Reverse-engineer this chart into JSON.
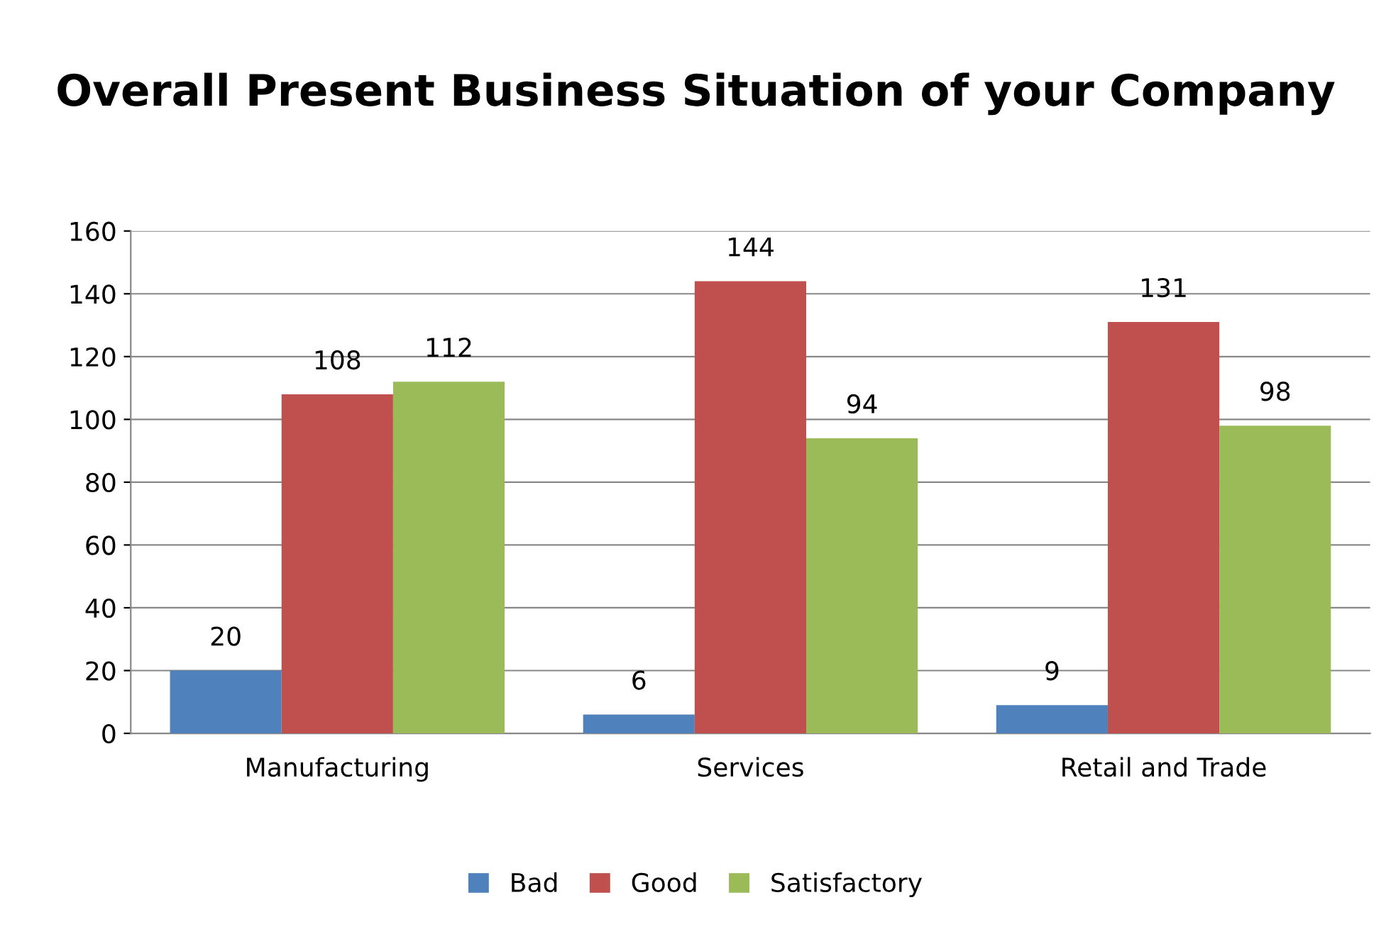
{
  "chart_data": {
    "type": "bar",
    "title": "Overall Present Business Situation of your Company",
    "categories": [
      "Manufacturing",
      "Services",
      "Retail and Trade"
    ],
    "series": [
      {
        "name": "Bad",
        "color": "#4f81bd",
        "values": [
          20,
          6,
          9
        ]
      },
      {
        "name": "Good",
        "color": "#c0504d",
        "values": [
          108,
          144,
          131
        ]
      },
      {
        "name": "Satisfactory",
        "color": "#9bbb59",
        "values": [
          112,
          94,
          98
        ]
      }
    ],
    "ylim": [
      0,
      160
    ],
    "yticks": [
      0,
      20,
      40,
      60,
      80,
      100,
      120,
      140,
      160
    ],
    "grid": "y",
    "legend": "bottom",
    "data_labels": true
  }
}
